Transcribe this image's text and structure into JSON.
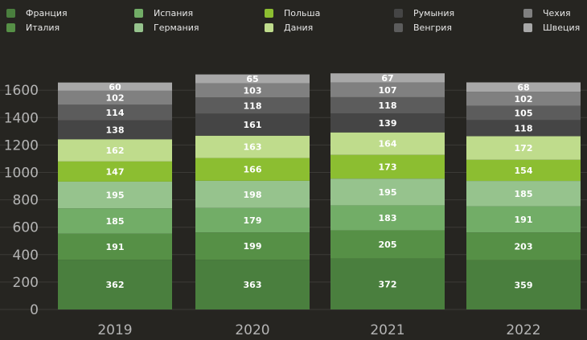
{
  "chart_data": {
    "type": "bar",
    "stacked": true,
    "categories": [
      "2019",
      "2020",
      "2021",
      "2022"
    ],
    "series": [
      {
        "name": "Франция",
        "color": "#4a7f3e",
        "values": [
          362,
          363,
          372,
          359
        ]
      },
      {
        "name": "Италия",
        "color": "#569046",
        "values": [
          191,
          199,
          205,
          203
        ]
      },
      {
        "name": "Испания",
        "color": "#72ad67",
        "values": [
          185,
          179,
          183,
          191
        ]
      },
      {
        "name": "Германия",
        "color": "#96c38d",
        "values": [
          195,
          198,
          195,
          185
        ]
      },
      {
        "name": "Польша",
        "color": "#8cbe31",
        "values": [
          147,
          166,
          173,
          154
        ]
      },
      {
        "name": "Дания",
        "color": "#bfdc8c",
        "values": [
          162,
          163,
          164,
          172
        ]
      },
      {
        "name": "Румыния",
        "color": "#454545",
        "values": [
          138,
          161,
          139,
          118
        ]
      },
      {
        "name": "Венгрия",
        "color": "#5c5c5c",
        "values": [
          114,
          118,
          118,
          105
        ]
      },
      {
        "name": "Чехия",
        "color": "#808080",
        "values": [
          102,
          103,
          107,
          102
        ]
      },
      {
        "name": "Швеция",
        "color": "#a8a8a8",
        "values": [
          60,
          65,
          67,
          68
        ]
      }
    ],
    "yticks": [
      0,
      200,
      400,
      600,
      800,
      1000,
      1200,
      1400,
      1600
    ],
    "ylim": [
      0,
      1700
    ],
    "grid": true,
    "legend_position": "top",
    "title": "",
    "xlabel": "",
    "ylabel": ""
  }
}
